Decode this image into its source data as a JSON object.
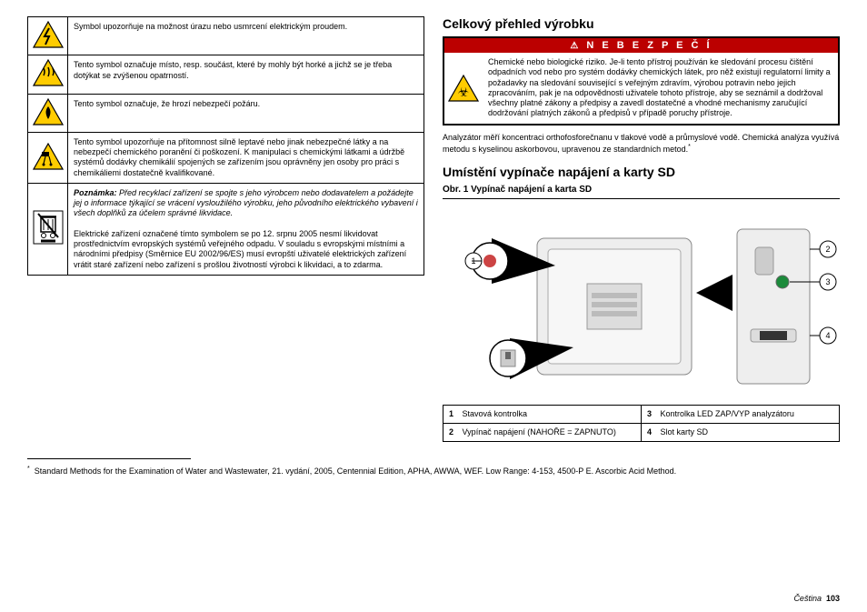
{
  "left_table": {
    "rows": [
      {
        "icon": "bolt",
        "icon_fill": "#ffcc00",
        "text": "Symbol upozorňuje na možnost úrazu nebo usmrcení elektrickým proudem."
      },
      {
        "icon": "hot",
        "icon_fill": "#ffcc00",
        "text": "Tento symbol označuje místo, resp. součást, které by mohly být horké a jichž se je třeba dotýkat se zvýšenou opatrností."
      },
      {
        "icon": "fire",
        "icon_fill": "#ffcc00",
        "text": "Tento symbol označuje, že hrozí nebezpečí požáru."
      },
      {
        "icon": "corrosive",
        "icon_fill": "#ffcc00",
        "text": "Tento symbol upozorňuje na přítomnost silně leptavé nebo jinak nebezpečné látky a na nebezpečí chemického poranění či poškození. K manipulaci s chemickými látkami a údržbě systémů dodávky chemikálií spojených se zařízením jsou oprávněny jen osoby pro práci s chemikáliemi dostatečně kvalifikované."
      },
      {
        "icon": "weee",
        "icon_fill": "#ffffff",
        "note": "Poznámka: Před recyklací zařízení se spojte s jeho výrobcem nebo dodavatelem a požádejte jej o informace týkající se vrácení vysloužilého výrobku, jeho původního elektrického vybavení i všech doplňků za účelem správné likvidace.",
        "text": "Elektrické zařízení označené tímto symbolem se po 12. srpnu 2005 nesmí likvidovat prostřednictvím evropských systémů veřejného odpadu. V souladu s evropskými místními a národními předpisy (Směrnice EU 2002/96/ES) musí evropští uživatelé elektrických zařízení vrátit staré zařízení nebo zařízení s prošlou životností výrobci k likvidaci, a to zdarma."
      }
    ]
  },
  "right": {
    "heading1": "Celkový přehled výrobku",
    "warn_header": "N E B E Z P E Č Í",
    "warn_icon_fill": "#ffcc00",
    "warn_text": "Chemické nebo biologické riziko. Je-li tento přístroj používán ke sledování procesu čištění odpadních vod nebo pro systém dodávky chemických látek, pro něž existují regulatorní limity a požadavky na sledování související s veřejným zdravím, výrobou potravin nebo jejich zpracováním, pak je na odpovědnosti uživatele tohoto přístroje, aby se seznámil a dodržoval všechny platné zákony a předpisy a zavedl dostatečné a vhodné mechanismy zaručující dodržování platných zákonů a předpisů v případě poruchy přístroje.",
    "paragraph": "Analyzátor měří koncentraci orthofosforečnanu v tlakové vodě a průmyslové vodě. Chemická analýza využívá metodu s kyselinou askorbovou, upravenou ze standardních metod.",
    "heading2": "Umístění vypínače napájení a karty SD",
    "fig_caption": "Obr. 1  Vypínač napájení a karta SD",
    "legend": [
      {
        "n": "1",
        "t": "Stavová kontrolka"
      },
      {
        "n": "2",
        "t": "Vypínač napájení (NAHOŘE = ZAPNUTO)"
      },
      {
        "n": "3",
        "t": "Kontrolka LED ZAP/VYP analyzátoru"
      },
      {
        "n": "4",
        "t": "Slot karty SD"
      }
    ]
  },
  "footnote": "Standard Methods for the Examination of Water and Wastewater, 21. vydání, 2005, Centennial Edition, APHA, AWWA, WEF. Low Range: 4-153, 4500-P E. Ascorbic Acid Method.",
  "footer": {
    "lang": "Čeština",
    "page": "103"
  }
}
